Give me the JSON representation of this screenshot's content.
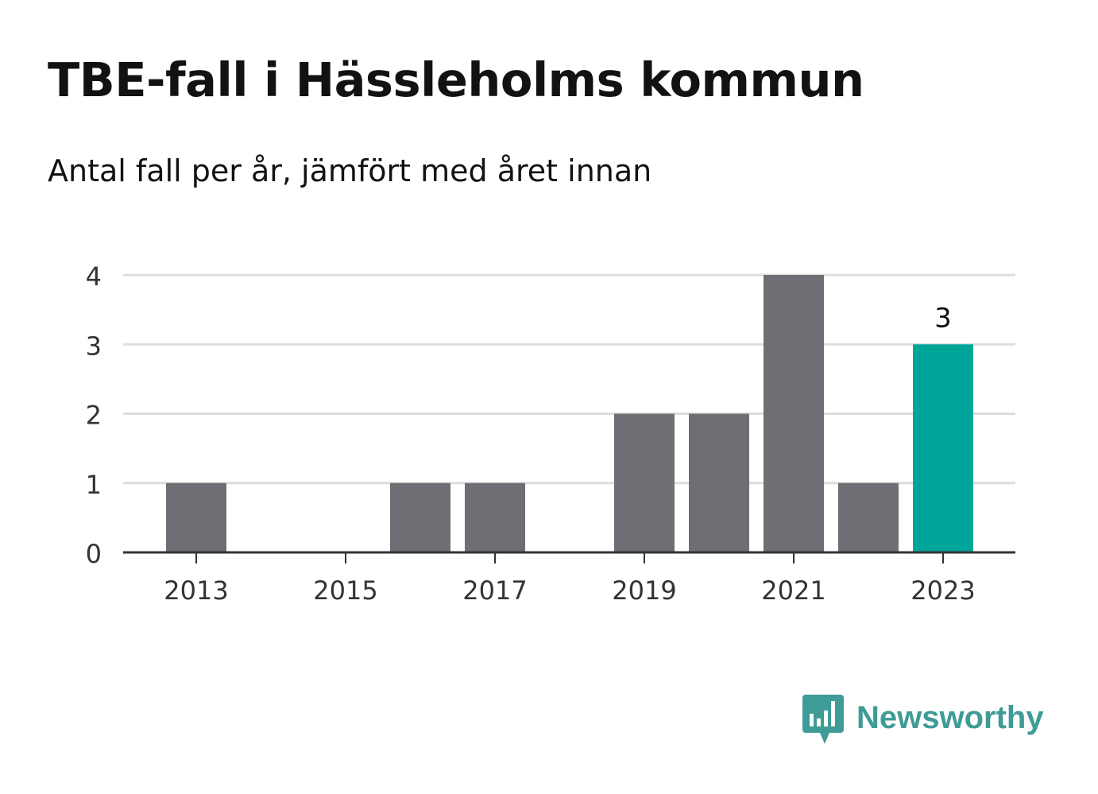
{
  "header": {
    "title": "TBE-fall i Hässleholms kommun",
    "subtitle": "Antal fall per år, jämfört med året innan"
  },
  "logo": {
    "text": "Newsworthy",
    "icon": "bar-chart-speech-bubble-icon",
    "color": "#3f9b95"
  },
  "colors": {
    "bar": "#6f6e74",
    "highlight": "#00a59a",
    "grid": "#dddddd",
    "axis": "#333333",
    "text": "#333333"
  },
  "chart_data": {
    "type": "bar",
    "categories": [
      "2013",
      "2014",
      "2015",
      "2016",
      "2017",
      "2018",
      "2019",
      "2020",
      "2021",
      "2022",
      "2023"
    ],
    "values": [
      1,
      0,
      0,
      1,
      1,
      0,
      2,
      2,
      4,
      1,
      3
    ],
    "x_tick_labels": [
      "2013",
      "2015",
      "2017",
      "2019",
      "2021",
      "2023"
    ],
    "y_ticks": [
      0,
      1,
      2,
      3,
      4
    ],
    "ylim": [
      0,
      4
    ],
    "highlight_category": "2023",
    "data_labels": [
      {
        "category": "2023",
        "label": "3"
      }
    ],
    "grid": true,
    "xlabel": "",
    "ylabel": ""
  }
}
